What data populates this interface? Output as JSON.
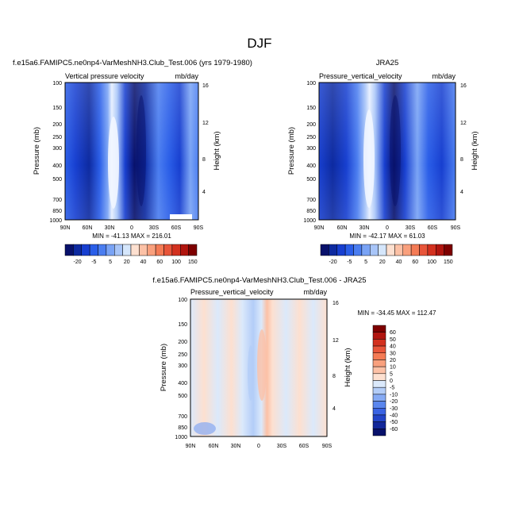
{
  "page": {
    "title": "DJF"
  },
  "chart_data": [
    {
      "type": "heatmap",
      "title": "f.e15a6.FAMIPC5.ne0np4-VarMeshNH3.Club_Test.006 (yrs 1979-1980)",
      "left_label": "Vertical pressure velocity",
      "right_label": "mb/day",
      "ylabel": "Pressure (mb)",
      "ylabel_right": "Height (km)",
      "xticks": [
        "90N",
        "60N",
        "30N",
        "0",
        "30S",
        "60S",
        "90S"
      ],
      "yticks": [
        "100",
        "150",
        "200",
        "250",
        "300",
        "400",
        "500",
        "700",
        "850",
        "1000"
      ],
      "yticks_right": [
        "16",
        "12",
        "8",
        "4"
      ],
      "minmax": "MIN = -41.13   MAX = 216.01",
      "colorbar_labels": [
        "-20",
        "-5",
        "5",
        "20",
        "40",
        "60",
        "100",
        "150"
      ]
    },
    {
      "type": "heatmap",
      "title": "JRA25",
      "left_label": "Pressure_vertical_velocity",
      "right_label": "mb/day",
      "ylabel": "Pressure (mb)",
      "ylabel_right": "Height (km)",
      "xticks": [
        "90N",
        "60N",
        "30N",
        "0",
        "30S",
        "60S",
        "90S"
      ],
      "yticks": [
        "100",
        "150",
        "200",
        "250",
        "300",
        "400",
        "500",
        "700",
        "850",
        "1000"
      ],
      "yticks_right": [
        "16",
        "12",
        "8",
        "4"
      ],
      "minmax": "MIN = -42.17   MAX = 61.03",
      "colorbar_labels": [
        "-20",
        "-5",
        "5",
        "20",
        "40",
        "60",
        "100",
        "150"
      ]
    },
    {
      "type": "heatmap",
      "title": "f.e15a6.FAMIPC5.ne0np4-VarMeshNH3.Club_Test.006 - JRA25",
      "left_label": "Pressure_vertical_velocity",
      "right_label": "mb/day",
      "ylabel": "Pressure (mb)",
      "ylabel_right": "Height (km)",
      "xticks": [
        "90N",
        "60N",
        "30N",
        "0",
        "30S",
        "60S",
        "90S"
      ],
      "yticks": [
        "100",
        "150",
        "200",
        "250",
        "300",
        "400",
        "500",
        "700",
        "850",
        "1000"
      ],
      "yticks_right": [
        "16",
        "12",
        "8",
        "4"
      ],
      "minmax": "MIN = -34.45   MAX = 112.47",
      "colorbar_labels": [
        "60",
        "50",
        "40",
        "30",
        "20",
        "10",
        "5",
        "0",
        "-5",
        "-10",
        "-20",
        "-30",
        "-40",
        "-50",
        "-60"
      ]
    }
  ],
  "colors": {
    "top_scale": [
      "#08116b",
      "#0d2aa0",
      "#173fd0",
      "#2a5ee8",
      "#4a7df0",
      "#79a3f5",
      "#a8c5f8",
      "#d5e6fb",
      "#fde0d0",
      "#fcc1a6",
      "#f9a07d",
      "#f47b55",
      "#e8553a",
      "#d3311f",
      "#b1150f",
      "#7e0000"
    ],
    "diff_scale": [
      "#7e0000",
      "#b1150f",
      "#d3311f",
      "#e8553a",
      "#f47b55",
      "#f9a07d",
      "#fcc1a6",
      "#fde0d0",
      "#dbe9fb",
      "#b3cdf8",
      "#86aaf4",
      "#5a86ee",
      "#3a63e3",
      "#2344c8",
      "#12279a",
      "#08116b"
    ]
  }
}
